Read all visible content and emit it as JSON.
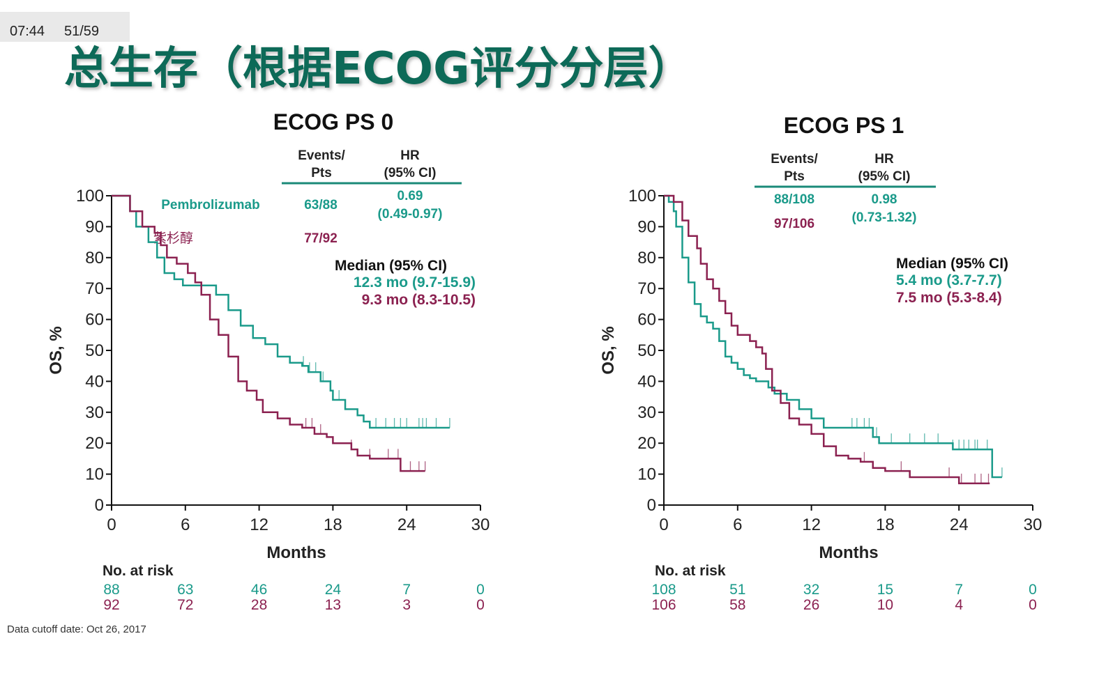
{
  "status_bar": {
    "time": "07:44",
    "page": "51/59"
  },
  "slide_title": "总生存（根据ECOG评分分层）",
  "footer": "Data cutoff date: Oct 26, 2017",
  "colors": {
    "pembrolizumab": "#1a9a8a",
    "docetaxel": "#8b2150",
    "title": "#0f6b58"
  },
  "panels": [
    {
      "title": "ECOG PS 0",
      "table": {
        "col1_line1": "Events/",
        "col1_line2": "Pts",
        "col2_line1": "HR",
        "col2_line2": "(95% CI)"
      },
      "legend": [
        {
          "name": "Pembrolizumab",
          "events": "63/88"
        },
        {
          "name": "紫杉醇",
          "events": "77/92"
        }
      ],
      "hr": {
        "value": "0.69",
        "ci": "(0.49-0.97)"
      },
      "median": {
        "label": "Median (95% CI)",
        "pembrolizumab": "12.3 mo (9.7-15.9)",
        "docetaxel": "9.3 mo (8.3-10.5)"
      },
      "risk": {
        "label": "No. at risk",
        "pembrolizumab": [
          "88",
          "63",
          "46",
          "24",
          "7",
          "0"
        ],
        "docetaxel": [
          "92",
          "72",
          "28",
          "13",
          "3",
          "0"
        ]
      }
    },
    {
      "title": "ECOG PS 1",
      "table": {
        "col1_line1": "Events/",
        "col1_line2": "Pts",
        "col2_line1": "HR",
        "col2_line2": "(95% CI)"
      },
      "legend": [
        {
          "events": "88/108"
        },
        {
          "events": "97/106"
        }
      ],
      "hr": {
        "value": "0.98",
        "ci": "(0.73-1.32)"
      },
      "median": {
        "label": "Median (95% CI)",
        "pembrolizumab": "5.4 mo (3.7-7.7)",
        "docetaxel": "7.5 mo (5.3-8.4)"
      },
      "risk": {
        "label": "No. at risk",
        "pembrolizumab": [
          "108",
          "51",
          "32",
          "15",
          "7",
          "0"
        ],
        "docetaxel": [
          "106",
          "58",
          "26",
          "10",
          "4",
          "0"
        ]
      }
    }
  ],
  "chart_data": [
    {
      "type": "line",
      "title": "ECOG PS 0",
      "xlabel": "Months",
      "ylabel": "OS, %",
      "xlim": [
        0,
        30
      ],
      "ylim": [
        0,
        100
      ],
      "xticks": [
        "0",
        "6",
        "12",
        "18",
        "24",
        "30"
      ],
      "yticks": [
        "0",
        "10",
        "20",
        "30",
        "40",
        "50",
        "60",
        "70",
        "80",
        "90",
        "100"
      ],
      "step": true,
      "grid": false,
      "series": [
        {
          "name": "Pembrolizumab",
          "color": "#1a9a8a",
          "x": [
            0,
            1.5,
            2,
            3,
            3.7,
            4.3,
            5.1,
            5.8,
            7.5,
            8.5,
            9.5,
            10.5,
            11.5,
            12.5,
            13.5,
            14.5,
            15.5,
            16,
            17,
            17.8,
            18,
            19,
            20,
            20.5,
            21,
            27.5
          ],
          "y": [
            100,
            95,
            90,
            85,
            80,
            75,
            73,
            71,
            71,
            68,
            63,
            58,
            54,
            52,
            48,
            46,
            45,
            43,
            40,
            37,
            34,
            31,
            29,
            27,
            25,
            25
          ],
          "censored": [
            15.6,
            16.1,
            16.6,
            17.2,
            18.5,
            19,
            21.5,
            22.3,
            23,
            23.5,
            24,
            25,
            25.3,
            25.6,
            26.4,
            27.5
          ]
        },
        {
          "name": "紫杉醇",
          "color": "#8b2150",
          "x": [
            0,
            1.2,
            1.5,
            2.5,
            3.5,
            4,
            4.5,
            5.3,
            6.2,
            6.8,
            7.3,
            8,
            8.7,
            9.5,
            10.3,
            11,
            11.8,
            12.3,
            13.5,
            14.5,
            15.5,
            16.5,
            17.5,
            18,
            19.5,
            20,
            21,
            23.5,
            25.5
          ],
          "y": [
            100,
            100,
            95,
            90,
            88,
            84,
            80,
            78,
            75,
            72,
            68,
            60,
            55,
            48,
            40,
            37,
            34,
            30,
            28,
            26,
            25,
            23,
            22,
            20,
            18,
            16,
            15,
            11,
            11
          ],
          "censored": [
            15.8,
            16.3,
            17,
            19.5,
            21,
            22.5,
            23.3,
            24.3,
            25,
            25.5
          ]
        }
      ]
    },
    {
      "type": "line",
      "title": "ECOG PS 1",
      "xlabel": "Months",
      "ylabel": "OS, %",
      "xlim": [
        0,
        30
      ],
      "ylim": [
        0,
        100
      ],
      "xticks": [
        "0",
        "6",
        "12",
        "18",
        "24",
        "30"
      ],
      "yticks": [
        "0",
        "10",
        "20",
        "30",
        "40",
        "50",
        "60",
        "70",
        "80",
        "90",
        "100"
      ],
      "step": true,
      "grid": false,
      "series": [
        {
          "name": "Pembrolizumab",
          "color": "#1a9a8a",
          "x": [
            0,
            0.4,
            0.8,
            1,
            1.5,
            2,
            2.5,
            3,
            3.5,
            4,
            4.5,
            5,
            5.5,
            6,
            6.5,
            7,
            7.5,
            8.5,
            9,
            10,
            11,
            12,
            13,
            16,
            17,
            17.5,
            23,
            23.5,
            26.5,
            26.7,
            27.5
          ],
          "y": [
            100,
            98,
            95,
            90,
            80,
            72,
            65,
            61,
            59,
            57,
            53,
            48,
            46,
            44,
            42,
            41,
            40,
            38,
            36,
            34,
            31,
            28,
            25,
            25,
            22,
            20,
            20,
            18,
            18,
            9,
            9
          ],
          "censored": [
            15.3,
            15.7,
            16.3,
            16.7,
            17.3,
            18.5,
            20,
            21.2,
            22.3,
            23.5,
            24,
            24.4,
            24.8,
            25.3,
            25.5,
            26.3,
            27.5
          ]
        },
        {
          "name": "紫杉醇",
          "color": "#8b2150",
          "x": [
            0,
            0.8,
            1.5,
            2,
            2.7,
            3,
            3.5,
            4,
            4.5,
            5,
            5.5,
            6,
            7,
            7.5,
            8,
            8.3,
            8.8,
            9.5,
            10.2,
            11,
            12,
            13,
            14,
            15,
            16,
            17,
            18,
            20,
            24,
            26.5
          ],
          "y": [
            100,
            98,
            92,
            87,
            83,
            78,
            73,
            70,
            66,
            62,
            58,
            55,
            53,
            51,
            49,
            44,
            37,
            33,
            28,
            26,
            23,
            19,
            16,
            15,
            14,
            12,
            11,
            9,
            7,
            7
          ],
          "censored": [
            16.3,
            19.3,
            23.2,
            24.2,
            25.3,
            25.8,
            26.4
          ]
        }
      ]
    }
  ]
}
